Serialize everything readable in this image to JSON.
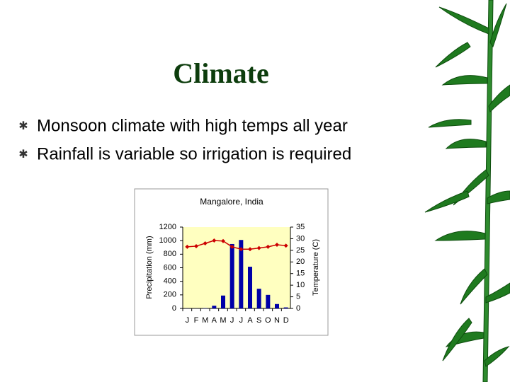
{
  "slide": {
    "title": "Climate",
    "bullets": [
      "Monsoon climate with high temps all year",
      "Rainfall is variable so irrigation is required"
    ]
  },
  "chart_data": {
    "type": "bar",
    "title": "Mangalore, India",
    "categories": [
      "J",
      "F",
      "M",
      "A",
      "M",
      "J",
      "J",
      "A",
      "S",
      "O",
      "N",
      "D"
    ],
    "series": [
      {
        "type": "bar",
        "color": "#0000a8",
        "values": [
          2,
          1,
          5,
          40,
          190,
          950,
          1010,
          615,
          290,
          200,
          65,
          15
        ]
      },
      {
        "type": "line",
        "axis": "y2",
        "color": "#cc0000",
        "values": [
          26.5,
          26.8,
          28,
          29.2,
          29,
          26.5,
          25.5,
          25.5,
          26,
          26.5,
          27.4,
          27
        ]
      }
    ],
    "ylabel": "Precipitation (mm)",
    "y2label": "Temperature (C)",
    "ylim": [
      0,
      1200
    ],
    "yticks": [
      0,
      200,
      400,
      600,
      800,
      1000,
      1200
    ],
    "y2lim": [
      0,
      35
    ],
    "y2ticks": [
      0,
      5,
      10,
      15,
      20,
      25,
      30,
      35
    ]
  }
}
